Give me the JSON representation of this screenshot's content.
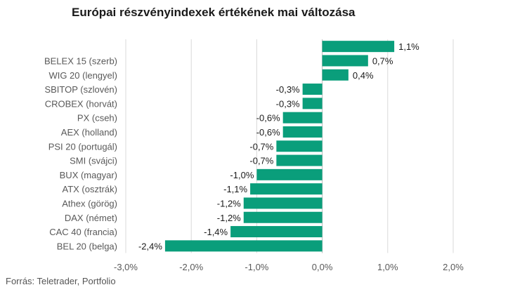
{
  "title": "Európai részvényindexek értékének mai változása",
  "source": "Forrás: Teletrader, Portfolio",
  "colors": {
    "bar": "#0a9e7b",
    "grid": "#d9d9d9",
    "text": "#595959"
  },
  "chart_data": {
    "type": "bar",
    "orientation": "horizontal",
    "title": "Európai részvényindexek értékének mai változása",
    "xlabel": "",
    "ylabel": "",
    "xlim": [
      -3.0,
      2.0
    ],
    "grid": true,
    "x_tick_values": [
      -3.0,
      -2.0,
      -1.0,
      0.0,
      1.0,
      2.0
    ],
    "x_tick_labels": [
      "-3,0%",
      "-2,0%",
      "-1,0%",
      "0,0%",
      "1,0%",
      "2,0%"
    ],
    "categories": [
      "",
      "BELEX 15 (szerb)",
      "WIG 20 (lengyel)",
      "SBITOP (szlovén)",
      "CROBEX (horvát)",
      "PX (cseh)",
      "AEX (holland)",
      "PSI 20 (portugál)",
      "SMI (svájci)",
      "BUX (magyar)",
      "ATX (osztrák)",
      "Athex (görög)",
      "DAX (német)",
      "CAC 40 (francia)",
      "BEL 20 (belga)"
    ],
    "values": [
      1.1,
      0.7,
      0.4,
      -0.3,
      -0.3,
      -0.6,
      -0.6,
      -0.7,
      -0.7,
      -1.0,
      -1.1,
      -1.2,
      -1.2,
      -1.4,
      -2.4
    ],
    "data_labels": [
      "1,1%",
      "0,7%",
      "0,4%",
      "-0,3%",
      "-0,3%",
      "-0,6%",
      "-0,6%",
      "-0,7%",
      "-0,7%",
      "-1,0%",
      "-1,1%",
      "-1,2%",
      "-1,2%",
      "-1,4%",
      "-2,4%"
    ]
  }
}
